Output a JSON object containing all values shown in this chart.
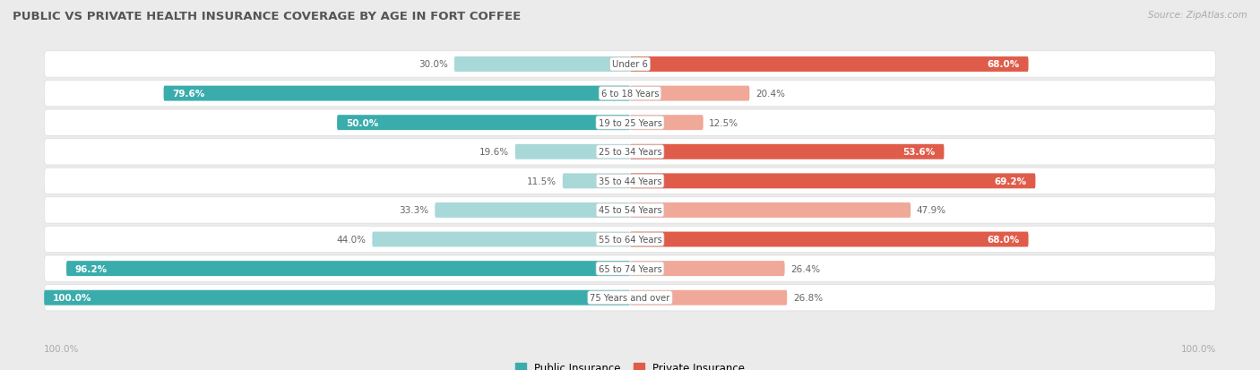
{
  "title": "PUBLIC VS PRIVATE HEALTH INSURANCE COVERAGE BY AGE IN FORT COFFEE",
  "source": "Source: ZipAtlas.com",
  "categories": [
    "Under 6",
    "6 to 18 Years",
    "19 to 25 Years",
    "25 to 34 Years",
    "35 to 44 Years",
    "45 to 54 Years",
    "55 to 64 Years",
    "65 to 74 Years",
    "75 Years and over"
  ],
  "public_values": [
    30.0,
    79.6,
    50.0,
    19.6,
    11.5,
    33.3,
    44.0,
    96.2,
    100.0
  ],
  "private_values": [
    68.0,
    20.4,
    12.5,
    53.6,
    69.2,
    47.9,
    68.0,
    26.4,
    26.8
  ],
  "public_color_strong": "#3AACAC",
  "public_color_light": "#A8D8D8",
  "private_color_strong": "#E05C4A",
  "private_color_light": "#F0A898",
  "bg_color": "#EBEBEB",
  "row_bg_color": "#F5F5F5",
  "title_color": "#555555",
  "label_color": "#555555",
  "value_label_dark": "#666666",
  "value_label_white": "#FFFFFF",
  "axis_label_color": "#AAAAAA",
  "legend_public": "Public Insurance",
  "legend_private": "Private Insurance",
  "bar_height": 0.52,
  "max_val": 100.0,
  "strong_threshold": 50.0
}
